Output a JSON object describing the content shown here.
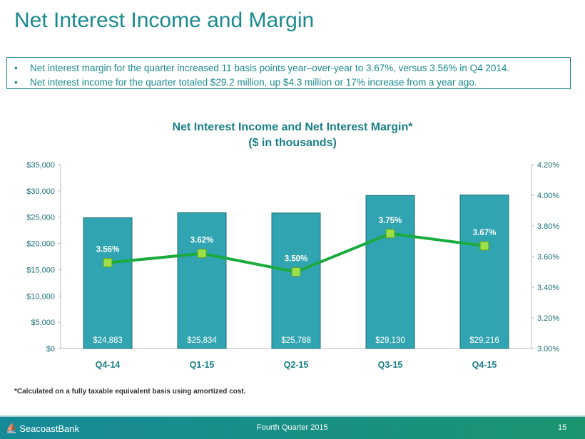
{
  "title": "Net Interest Income and Margin",
  "bullets": [
    "Net interest margin for the quarter increased 11 basis points year–over-year to 3.67%, versus 3.56% in Q4 2014.",
    "Net interest income for the quarter totaled $29.2 million, up $4.3 million or 17% increase from a year ago."
  ],
  "footnote": "*Calculated on a fully taxable equivalent basis using amortized cost.",
  "footer": {
    "brand": "SeacoastBank",
    "quarter": "Fourth Quarter 2015",
    "page": "15"
  },
  "chart_data": {
    "type": "bar",
    "title": "Net Interest Income and Net Interest Margin*",
    "subtitle": "($ in thousands)",
    "categories": [
      "Q4-14",
      "Q1-15",
      "Q2-15",
      "Q3-15",
      "Q4-15"
    ],
    "series": [
      {
        "name": "Net Interest Income",
        "type": "bar",
        "axis": "left",
        "values": [
          24883,
          25834,
          25788,
          29130,
          29216
        ],
        "labels": [
          "$24,883",
          "$25,834",
          "$25,788",
          "$29,130",
          "$29,216"
        ],
        "color": "#31a4b1"
      },
      {
        "name": "Net Interest Margin",
        "type": "line",
        "axis": "right",
        "values": [
          3.56,
          3.62,
          3.5,
          3.75,
          3.67
        ],
        "labels": [
          "3.56%",
          "3.62%",
          "3.50%",
          "3.75%",
          "3.67%"
        ],
        "color": "#1aab3e"
      }
    ],
    "y_left": {
      "range": [
        0,
        35000
      ],
      "ticks": [
        "$0",
        "$5,000",
        "$10,000",
        "$15,000",
        "$20,000",
        "$25,000",
        "$30,000",
        "$35,000"
      ]
    },
    "y_right": {
      "range": [
        3.0,
        4.2
      ],
      "ticks": [
        "3.00%",
        "3.20%",
        "3.40%",
        "3.60%",
        "3.80%",
        "4.00%",
        "4.20%"
      ]
    },
    "grid": false
  }
}
